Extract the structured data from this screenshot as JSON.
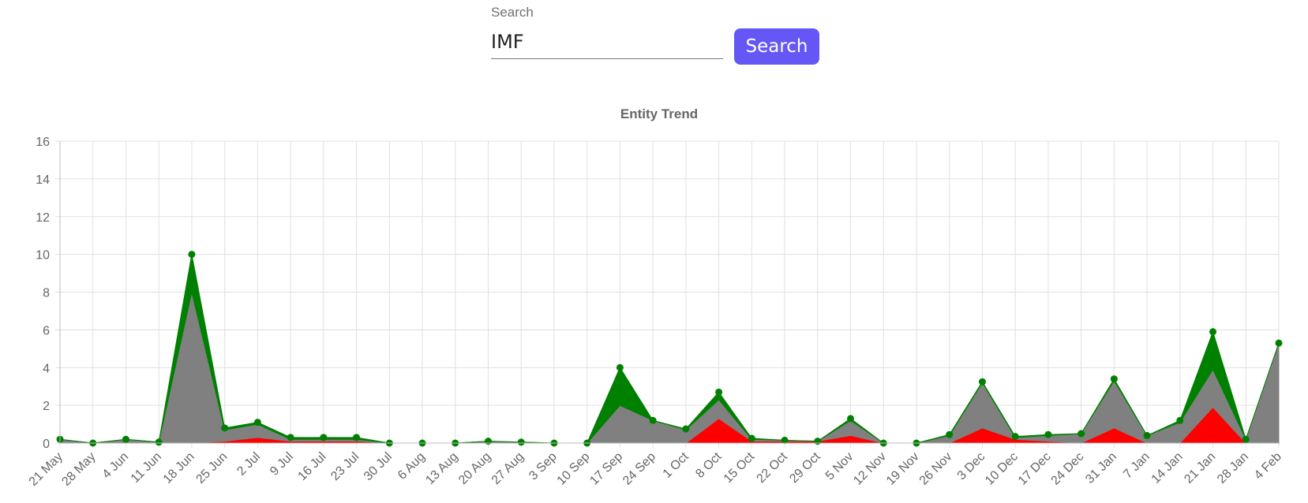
{
  "search": {
    "label": "Search",
    "value": "IMF",
    "button_label": "Search"
  },
  "colors": {
    "accent": "#6557f5",
    "positive": "#008000",
    "neutral": "#808080",
    "negative": "#ff0000",
    "grid": "#e0e0e0"
  },
  "chart_data": {
    "type": "area",
    "stacked": true,
    "title": "Entity Trend",
    "xlabel": "",
    "ylabel": "",
    "ylim": [
      0,
      16
    ],
    "yticks": [
      0,
      2,
      4,
      6,
      8,
      10,
      12,
      14,
      16
    ],
    "grid": true,
    "categories": [
      "21 May",
      "28 May",
      "4 Jun",
      "11 Jun",
      "18 Jun",
      "25 Jun",
      "2 Jul",
      "9 Jul",
      "16 Jul",
      "23 Jul",
      "30 Jul",
      "6 Aug",
      "13 Aug",
      "20 Aug",
      "27 Aug",
      "3 Sep",
      "10 Sep",
      "17 Sep",
      "24 Sep",
      "1 Oct",
      "8 Oct",
      "15 Oct",
      "22 Oct",
      "29 Oct",
      "5 Nov",
      "12 Nov",
      "19 Nov",
      "26 Nov",
      "3 Dec",
      "10 Dec",
      "17 Dec",
      "24 Dec",
      "31 Jan",
      "7 Jan",
      "14 Jan",
      "21 Jan",
      "28 Jan",
      "4 Feb"
    ],
    "series": [
      {
        "color": "#ff0000",
        "values": [
          0,
          0,
          0,
          0,
          0,
          0.1,
          0.3,
          0.1,
          0.1,
          0.1,
          0,
          0,
          0,
          0.05,
          0,
          0,
          0,
          0,
          0,
          0,
          1.3,
          0.1,
          0.1,
          0.1,
          0.4,
          0,
          0,
          0,
          0.8,
          0.2,
          0.1,
          0,
          0.8,
          0,
          0,
          1.9,
          0,
          0
        ]
      },
      {
        "color": "#808080",
        "values": [
          0.2,
          0,
          0.2,
          0.05,
          8.0,
          0.6,
          0.7,
          0.1,
          0.1,
          0.1,
          0,
          0,
          0,
          0.05,
          0.05,
          0,
          0,
          2.0,
          1.2,
          0.7,
          1.0,
          0.1,
          0.05,
          0,
          0.8,
          0,
          0,
          0.4,
          2.4,
          0.1,
          0.3,
          0.5,
          2.5,
          0.4,
          1.1,
          2.0,
          0.2,
          5.3
        ]
      },
      {
        "color": "#008000",
        "values": [
          0,
          0,
          0,
          0,
          2.0,
          0.1,
          0.1,
          0.1,
          0.1,
          0.1,
          0,
          0,
          0,
          0,
          0,
          0,
          0,
          2.0,
          0,
          0.05,
          0.4,
          0.05,
          0,
          0,
          0.1,
          0,
          0,
          0.05,
          0.05,
          0.05,
          0.05,
          0,
          0.1,
          0,
          0.1,
          2.0,
          0,
          0
        ]
      }
    ]
  }
}
